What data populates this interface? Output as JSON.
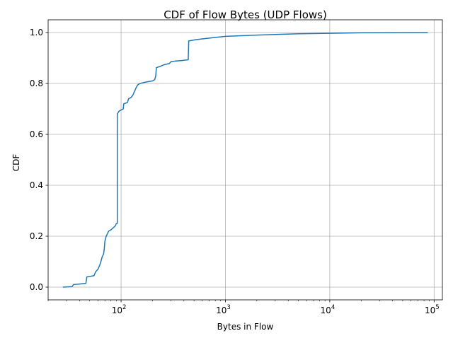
{
  "chart_data": {
    "type": "line",
    "title": "CDF of Flow Bytes (UDP Flows)",
    "xlabel": "Bytes in Flow",
    "ylabel": "CDF",
    "x_scale": "log",
    "xlim": [
      20,
      120000
    ],
    "ylim": [
      -0.05,
      1.05
    ],
    "grid": true,
    "legend": "none",
    "x_ticks": [
      {
        "value": 100,
        "base": "10",
        "exp": "2"
      },
      {
        "value": 1000,
        "base": "10",
        "exp": "3"
      },
      {
        "value": 10000,
        "base": "10",
        "exp": "4"
      },
      {
        "value": 100000,
        "base": "10",
        "exp": "5"
      }
    ],
    "y_ticks": [
      {
        "value": 0.0,
        "label": "0.0"
      },
      {
        "value": 0.2,
        "label": "0.2"
      },
      {
        "value": 0.4,
        "label": "0.4"
      },
      {
        "value": 0.6,
        "label": "0.6"
      },
      {
        "value": 0.8,
        "label": "0.8"
      },
      {
        "value": 1.0,
        "label": "1.0"
      }
    ],
    "series": [
      {
        "color": "#1f77b4",
        "points": [
          [
            28,
            0.0
          ],
          [
            34,
            0.002
          ],
          [
            35,
            0.01
          ],
          [
            40,
            0.012
          ],
          [
            46,
            0.015
          ],
          [
            47,
            0.04
          ],
          [
            55,
            0.045
          ],
          [
            57,
            0.06
          ],
          [
            60,
            0.07
          ],
          [
            63,
            0.09
          ],
          [
            64,
            0.1
          ],
          [
            66,
            0.12
          ],
          [
            68,
            0.13
          ],
          [
            69,
            0.15
          ],
          [
            70,
            0.18
          ],
          [
            71,
            0.19
          ],
          [
            72,
            0.2
          ],
          [
            74,
            0.21
          ],
          [
            76,
            0.22
          ],
          [
            80,
            0.225
          ],
          [
            85,
            0.235
          ],
          [
            88,
            0.24
          ],
          [
            90,
            0.25
          ],
          [
            92,
            0.25
          ],
          [
            92,
            0.68
          ],
          [
            95,
            0.69
          ],
          [
            99,
            0.695
          ],
          [
            105,
            0.7
          ],
          [
            106,
            0.72
          ],
          [
            115,
            0.725
          ],
          [
            118,
            0.74
          ],
          [
            125,
            0.745
          ],
          [
            130,
            0.755
          ],
          [
            135,
            0.77
          ],
          [
            140,
            0.785
          ],
          [
            145,
            0.795
          ],
          [
            152,
            0.8
          ],
          [
            170,
            0.805
          ],
          [
            200,
            0.81
          ],
          [
            210,
            0.815
          ],
          [
            215,
            0.83
          ],
          [
            218,
            0.862
          ],
          [
            240,
            0.868
          ],
          [
            260,
            0.874
          ],
          [
            290,
            0.878
          ],
          [
            300,
            0.885
          ],
          [
            330,
            0.888
          ],
          [
            380,
            0.89
          ],
          [
            440,
            0.893
          ],
          [
            445,
            0.967
          ],
          [
            520,
            0.972
          ],
          [
            600,
            0.975
          ],
          [
            700,
            0.978
          ],
          [
            850,
            0.982
          ],
          [
            1000,
            0.985
          ],
          [
            2000,
            0.99
          ],
          [
            5000,
            0.995
          ],
          [
            10000,
            0.997
          ],
          [
            20000,
            0.999
          ],
          [
            86000,
            1.0
          ]
        ]
      }
    ]
  }
}
